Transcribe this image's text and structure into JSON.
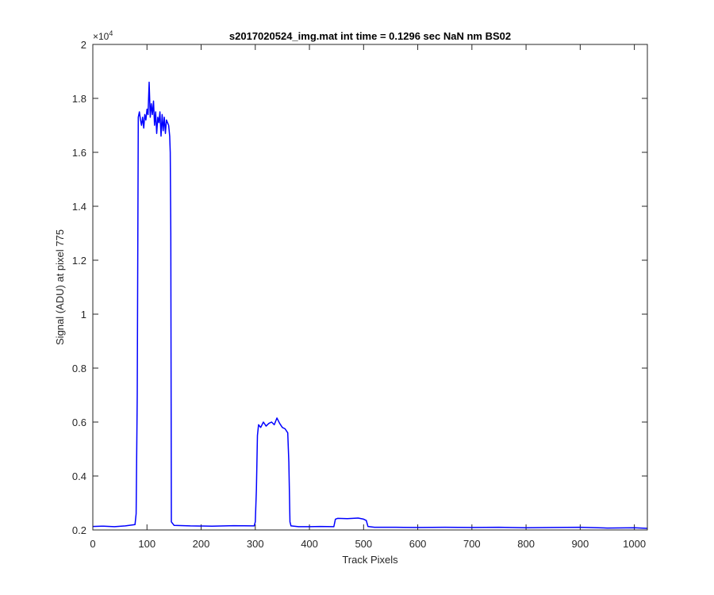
{
  "chart_data": {
    "type": "line",
    "title": "s2017020524_img.mat int time = 0.1296 sec  NaN nm BS02",
    "xlabel": "Track Pixels",
    "ylabel": "Signal (ADU) at pixel 775",
    "y_exponent_label": "×10",
    "y_exponent_power": "4",
    "xlim": [
      0,
      1024
    ],
    "ylim": [
      2000,
      20000
    ],
    "grid": false,
    "line_color": "#0000FF",
    "x_ticks": [
      0,
      100,
      200,
      300,
      400,
      500,
      600,
      700,
      800,
      900,
      1000
    ],
    "x_tick_labels": [
      "0",
      "100",
      "200",
      "300",
      "400",
      "500",
      "600",
      "700",
      "800",
      "900",
      "1000"
    ],
    "y_ticks": [
      2000,
      4000,
      6000,
      8000,
      10000,
      12000,
      14000,
      16000,
      18000,
      20000
    ],
    "y_tick_labels": [
      "0.2",
      "0.4",
      "0.6",
      "0.8",
      "1",
      "1.2",
      "1.4",
      "1.6",
      "1.8",
      "2"
    ],
    "series": [
      {
        "x": [
          0,
          20,
          40,
          60,
          78,
          80,
          82,
          84,
          86,
          88,
          90,
          92,
          94,
          96,
          98,
          100,
          102,
          104,
          106,
          108,
          110,
          112,
          114,
          116,
          118,
          120,
          122,
          124,
          126,
          128,
          130,
          132,
          134,
          136,
          138,
          140,
          142,
          143,
          144,
          145,
          150,
          180,
          220,
          260,
          298,
          300,
          302,
          304,
          306,
          310,
          315,
          320,
          325,
          330,
          335,
          340,
          345,
          350,
          355,
          360,
          362,
          364,
          366,
          380,
          400,
          420,
          445,
          448,
          452,
          470,
          490,
          500,
          505,
          508,
          520,
          560,
          600,
          650,
          700,
          750,
          800,
          850,
          900,
          950,
          1000,
          1024
        ],
        "y": [
          2130,
          2140,
          2120,
          2150,
          2200,
          2600,
          7000,
          17300,
          17500,
          17200,
          17000,
          17300,
          16900,
          17400,
          17200,
          17600,
          17400,
          18600,
          17300,
          17800,
          17400,
          17900,
          17000,
          17500,
          16700,
          17300,
          17100,
          17500,
          16600,
          17400,
          16800,
          17300,
          16700,
          17200,
          17100,
          17000,
          16600,
          16000,
          13000,
          2300,
          2170,
          2150,
          2140,
          2160,
          2150,
          2300,
          3500,
          5500,
          5900,
          5800,
          6000,
          5850,
          5950,
          6000,
          5900,
          6150,
          5950,
          5800,
          5750,
          5600,
          4500,
          2300,
          2150,
          2120,
          2120,
          2130,
          2120,
          2400,
          2430,
          2420,
          2440,
          2400,
          2350,
          2130,
          2100,
          2100,
          2090,
          2100,
          2090,
          2100,
          2080,
          2090,
          2100,
          2070,
          2080,
          2060
        ]
      }
    ]
  }
}
